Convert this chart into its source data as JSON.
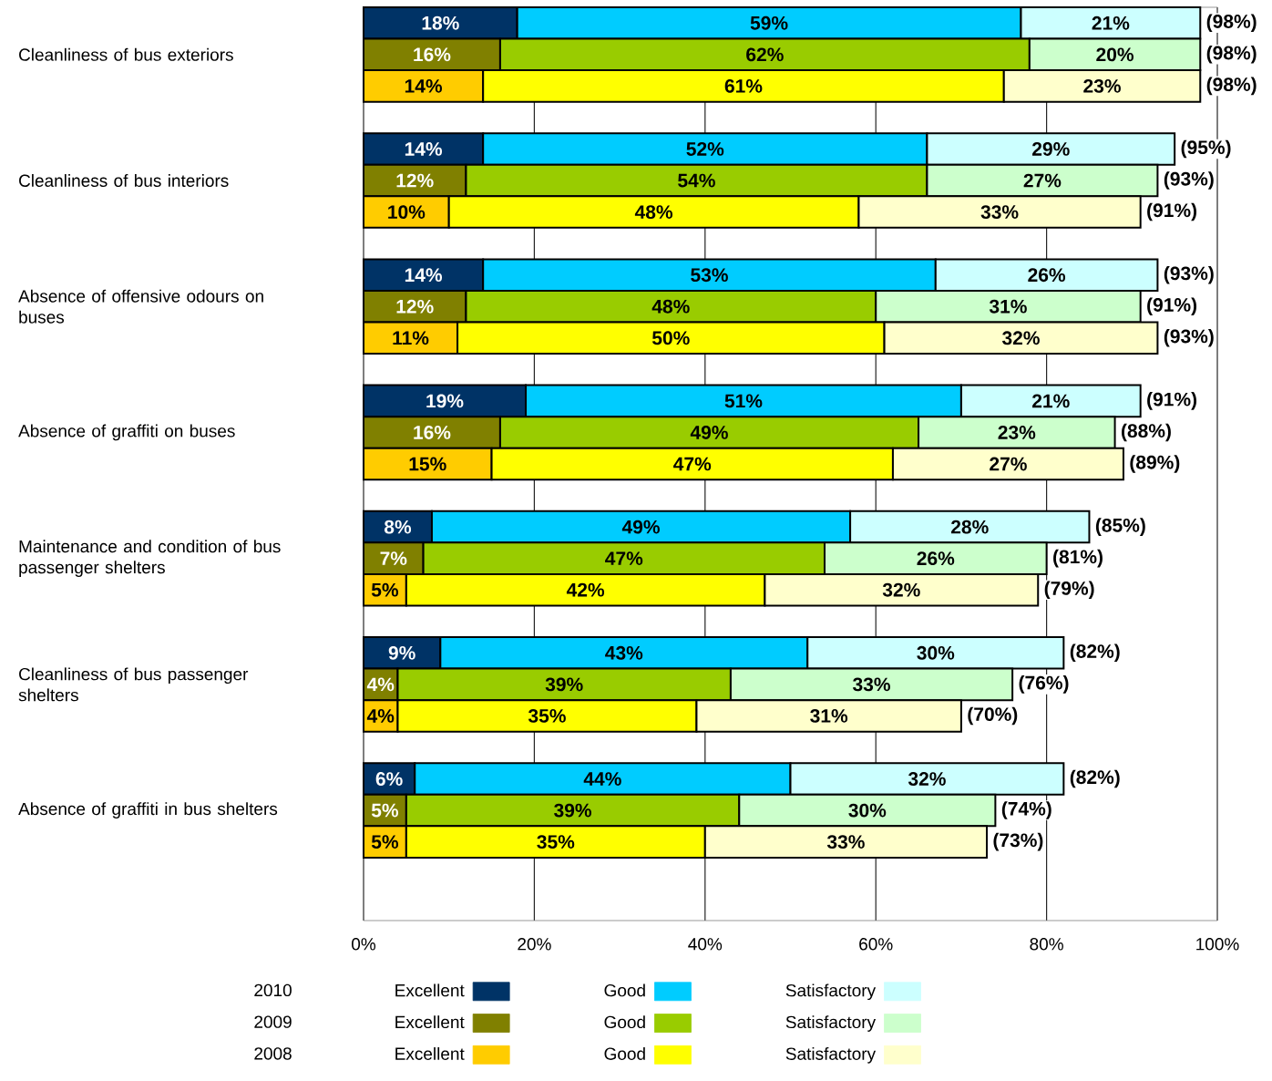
{
  "chart_data": {
    "type": "bar",
    "orientation": "horizontal",
    "stacked": true,
    "categories": [
      null,
      "Cleanliness of bus exteriors",
      null,
      null,
      null,
      "Cleanliness of bus interiors",
      null,
      null,
      null,
      "Absence of offensive odours on buses",
      null,
      null,
      null,
      "Absence of graffiti on buses",
      null,
      null,
      null,
      "Maintenance and condition of bus passenger shelters",
      null,
      null,
      null,
      "Cleanliness of bus passenger shelters",
      null,
      null,
      null,
      "Absence of graffiti in bus shelters",
      null,
      null,
      null
    ],
    "series": [
      {
        "name": "Excellent",
        "color": "#003366",
        "values": [
          18,
          null,
          null,
          null,
          14,
          null,
          null,
          null,
          14,
          null,
          null,
          null,
          19,
          null,
          null,
          null,
          8,
          null,
          null,
          null,
          9,
          null,
          null,
          null,
          6,
          null,
          null,
          null,
          null
        ],
        "value_labels": [
          "18%",
          null,
          null,
          null,
          "14%",
          null,
          null,
          null,
          "14%",
          null,
          null,
          null,
          "19%",
          null,
          null,
          null,
          "8%",
          null,
          null,
          null,
          "9%",
          null,
          null,
          null,
          "6%",
          null,
          null,
          null,
          null
        ]
      },
      {
        "name": "Good",
        "color": "#00ccff",
        "values": [
          59,
          null,
          null,
          null,
          52,
          null,
          null,
          null,
          53,
          null,
          null,
          null,
          51,
          null,
          null,
          null,
          49,
          null,
          null,
          null,
          43,
          null,
          null,
          null,
          44,
          null,
          null,
          null,
          null
        ],
        "value_labels": [
          "59%",
          null,
          null,
          null,
          "52%",
          null,
          null,
          null,
          "53%",
          null,
          null,
          null,
          "51%",
          null,
          null,
          null,
          "49%",
          null,
          null,
          null,
          "43%",
          null,
          null,
          null,
          "44%",
          null,
          null,
          null,
          null
        ]
      },
      {
        "name": "Satisfactory",
        "color": "#ccffff",
        "values": [
          21,
          null,
          null,
          null,
          29,
          null,
          null,
          null,
          26,
          null,
          null,
          null,
          21,
          null,
          null,
          null,
          28,
          null,
          null,
          null,
          30,
          null,
          null,
          null,
          32,
          null,
          null,
          null,
          null
        ],
        "value_labels": [
          "21%",
          null,
          null,
          null,
          "29%",
          null,
          null,
          null,
          "26%",
          null,
          null,
          null,
          "21%",
          null,
          null,
          null,
          "28%",
          null,
          null,
          null,
          "30%",
          null,
          null,
          null,
          "32%",
          null,
          null,
          null,
          null
        ]
      },
      {
        "name": "Excellent",
        "color": "#808000",
        "values": [
          null,
          16,
          null,
          null,
          null,
          12,
          null,
          null,
          null,
          12,
          null,
          null,
          null,
          16,
          null,
          null,
          null,
          7,
          null,
          null,
          null,
          4,
          null,
          null,
          null,
          5,
          null,
          null,
          null
        ],
        "value_labels": [
          null,
          "16%",
          null,
          null,
          null,
          "12%",
          null,
          null,
          null,
          "12%",
          null,
          null,
          null,
          "16%",
          null,
          null,
          null,
          "7%",
          null,
          null,
          null,
          "4%",
          null,
          null,
          null,
          "5%",
          null,
          null,
          null
        ]
      },
      {
        "name": "Good",
        "color": "#99cc00",
        "values": [
          null,
          62,
          null,
          null,
          null,
          54,
          null,
          null,
          null,
          48,
          null,
          null,
          null,
          49,
          null,
          null,
          null,
          47,
          null,
          null,
          null,
          39,
          null,
          null,
          null,
          39,
          null,
          null,
          null
        ],
        "value_labels": [
          null,
          "62%",
          null,
          null,
          null,
          "54%",
          null,
          null,
          null,
          "48%",
          null,
          null,
          null,
          "49%",
          null,
          null,
          null,
          "47%",
          null,
          null,
          null,
          "39%",
          null,
          null,
          null,
          "39%",
          null,
          null,
          null
        ]
      },
      {
        "name": "Satisfactory",
        "color": "#ccffcc",
        "values": [
          null,
          20,
          null,
          null,
          null,
          27,
          null,
          null,
          null,
          31,
          null,
          null,
          null,
          23,
          null,
          null,
          null,
          26,
          null,
          null,
          null,
          33,
          null,
          null,
          null,
          30,
          null,
          null,
          null
        ],
        "value_labels": [
          null,
          "20%",
          null,
          null,
          null,
          "27%",
          null,
          null,
          null,
          "31%",
          null,
          null,
          null,
          "23%",
          null,
          null,
          null,
          "26%",
          null,
          null,
          null,
          "33%",
          null,
          null,
          null,
          "30%",
          null,
          null,
          null
        ]
      },
      {
        "name": "Excellent",
        "color": "#ffcc00",
        "values": [
          null,
          null,
          14,
          null,
          null,
          null,
          10,
          null,
          null,
          null,
          11,
          null,
          null,
          null,
          15,
          null,
          null,
          null,
          5,
          null,
          null,
          null,
          4,
          null,
          null,
          null,
          5,
          null,
          null
        ],
        "value_labels": [
          null,
          null,
          "14%",
          null,
          null,
          null,
          "10%",
          null,
          null,
          null,
          "11%",
          null,
          null,
          null,
          "15%",
          null,
          null,
          null,
          "5%",
          null,
          null,
          null,
          "4%",
          null,
          null,
          null,
          "5%",
          null,
          null
        ]
      },
      {
        "name": "Good",
        "color": "#ffff00",
        "values": [
          null,
          null,
          61,
          null,
          null,
          null,
          48,
          null,
          null,
          null,
          50,
          null,
          null,
          null,
          47,
          null,
          null,
          null,
          42,
          null,
          null,
          null,
          35,
          null,
          null,
          null,
          35,
          null,
          null
        ],
        "value_labels": [
          null,
          null,
          "61%",
          null,
          null,
          null,
          "48%",
          null,
          null,
          null,
          "50%",
          null,
          null,
          null,
          "47%",
          null,
          null,
          null,
          "42%",
          null,
          null,
          null,
          "35%",
          null,
          null,
          null,
          "35%",
          null,
          null
        ]
      },
      {
        "name": "Satisfactory",
        "color": "#ffffcc",
        "values": [
          null,
          null,
          23,
          null,
          null,
          null,
          33,
          null,
          null,
          null,
          32,
          null,
          null,
          null,
          27,
          null,
          null,
          null,
          32,
          null,
          null,
          null,
          31,
          null,
          null,
          null,
          33,
          null,
          null
        ],
        "value_labels": [
          null,
          null,
          "23%",
          null,
          null,
          null,
          "33%",
          null,
          null,
          null,
          "32%",
          null,
          null,
          null,
          "27%",
          null,
          null,
          null,
          "32%",
          null,
          null,
          null,
          "31%",
          null,
          null,
          null,
          "33%",
          null,
          null
        ]
      }
    ],
    "totals": [
      "(98%)",
      "(98%)",
      "(98%)",
      null,
      "(95%)",
      "(93%)",
      "(91%)",
      null,
      "(93%)",
      "(91%)",
      "(93%)",
      null,
      "(91%)",
      "(88%)",
      "(89%)",
      null,
      "(85%)",
      "(81%)",
      "(79%)",
      null,
      "(82%)",
      "(76%)",
      "(70%)",
      null,
      "(82%)",
      "(74%)",
      "(73%)",
      null,
      null
    ],
    "annotations": [
      "2010",
      "2009",
      "2008"
    ],
    "xlim": [
      0,
      100
    ],
    "xticks": [
      {
        "value": 0,
        "label": "0%"
      },
      {
        "value": 20,
        "label": "20%"
      },
      {
        "value": 40,
        "label": "40%"
      },
      {
        "value": 60,
        "label": "60%"
      },
      {
        "value": 80,
        "label": "80%"
      },
      {
        "value": 100,
        "label": "100%"
      }
    ],
    "grid": "x",
    "legend": "bottom"
  }
}
